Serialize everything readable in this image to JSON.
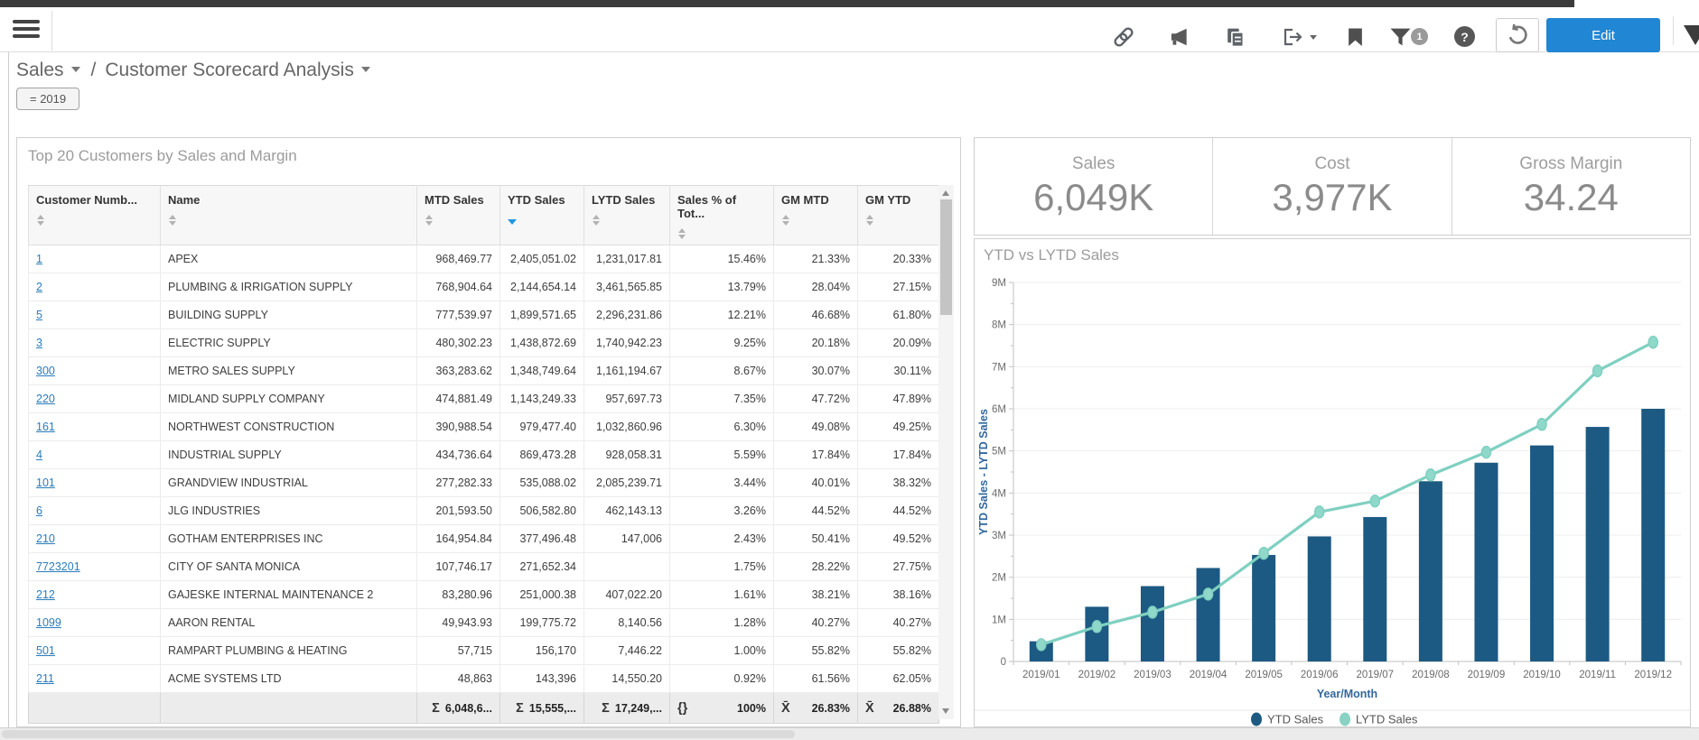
{
  "toolbar": {
    "edit_label": "Edit",
    "filter_badge": "1",
    "help_glyph": "?",
    "icons": [
      "menu-icon",
      "link-icon",
      "megaphone-icon",
      "copy-icon",
      "export-icon",
      "bookmark-icon",
      "filter-icon",
      "help-icon",
      "refresh-icon"
    ]
  },
  "breadcrumb": {
    "level1": "Sales",
    "separator": "/",
    "level2": "Customer Scorecard Analysis"
  },
  "filter_chip": "= 2019",
  "table_panel": {
    "title": "Top 20 Customers by Sales and Margin",
    "columns": [
      "Customer Numb...",
      "Name",
      "MTD Sales",
      "YTD Sales",
      "LYTD Sales",
      "Sales % of Tot...",
      "GM MTD",
      "GM YTD"
    ],
    "sorted_column_index": 3,
    "sort_direction": "desc",
    "rows": [
      [
        "1",
        "APEX",
        "968,469.77",
        "2,405,051.02",
        "1,231,017.81",
        "15.46%",
        "21.33%",
        "20.33%"
      ],
      [
        "2",
        "PLUMBING & IRRIGATION SUPPLY",
        "768,904.64",
        "2,144,654.14",
        "3,461,565.85",
        "13.79%",
        "28.04%",
        "27.15%"
      ],
      [
        "5",
        "BUILDING SUPPLY",
        "777,539.97",
        "1,899,571.65",
        "2,296,231.86",
        "12.21%",
        "46.68%",
        "61.80%"
      ],
      [
        "3",
        "ELECTRIC SUPPLY",
        "480,302.23",
        "1,438,872.69",
        "1,740,942.23",
        "9.25%",
        "20.18%",
        "20.09%"
      ],
      [
        "300",
        "METRO SALES SUPPLY",
        "363,283.62",
        "1,348,749.64",
        "1,161,194.67",
        "8.67%",
        "30.07%",
        "30.11%"
      ],
      [
        "220",
        "MIDLAND SUPPLY COMPANY",
        "474,881.49",
        "1,143,249.33",
        "957,697.73",
        "7.35%",
        "47.72%",
        "47.89%"
      ],
      [
        "161",
        "NORTHWEST CONSTRUCTION",
        "390,988.54",
        "979,477.40",
        "1,032,860.96",
        "6.30%",
        "49.08%",
        "49.25%"
      ],
      [
        "4",
        "INDUSTRIAL SUPPLY",
        "434,736.64",
        "869,473.28",
        "928,058.31",
        "5.59%",
        "17.84%",
        "17.84%"
      ],
      [
        "101",
        "GRANDVIEW INDUSTRIAL",
        "277,282.33",
        "535,088.02",
        "2,085,239.71",
        "3.44%",
        "40.01%",
        "38.32%"
      ],
      [
        "6",
        "JLG INDUSTRIES",
        "201,593.50",
        "506,582.80",
        "462,143.13",
        "3.26%",
        "44.52%",
        "44.52%"
      ],
      [
        "210",
        "GOTHAM ENTERPRISES INC",
        "164,954.84",
        "377,496.48",
        "147,006",
        "2.43%",
        "50.41%",
        "49.52%"
      ],
      [
        "7723201",
        "CITY OF SANTA MONICA",
        "107,746.17",
        "271,652.34",
        "",
        "1.75%",
        "28.22%",
        "27.75%"
      ],
      [
        "212",
        "GAJESKE INTERNAL MAINTENANCE 2",
        "83,280.96",
        "251,000.38",
        "407,022.20",
        "1.61%",
        "38.21%",
        "38.16%"
      ],
      [
        "1099",
        "AARON RENTAL",
        "49,943.93",
        "199,775.72",
        "8,140.56",
        "1.28%",
        "40.27%",
        "40.27%"
      ],
      [
        "501",
        "RAMPART PLUMBING & HEATING",
        "57,715",
        "156,170",
        "7,446.22",
        "1.00%",
        "55.82%",
        "55.82%"
      ],
      [
        "211",
        "ACME SYSTEMS LTD",
        "48,863",
        "143,396",
        "14,550.20",
        "0.92%",
        "61.56%",
        "62.05%"
      ]
    ],
    "totals": [
      {
        "symbol": "",
        "value": ""
      },
      {
        "symbol": "",
        "value": ""
      },
      {
        "symbol": "Σ",
        "value": "6,048,6..."
      },
      {
        "symbol": "Σ",
        "value": "15,555,..."
      },
      {
        "symbol": "Σ",
        "value": "17,249,..."
      },
      {
        "symbol": "{}",
        "value": "100%"
      },
      {
        "symbol": "X̄",
        "value": "26.83%"
      },
      {
        "symbol": "X̄",
        "value": "26.88%"
      }
    ]
  },
  "kpis": [
    {
      "label": "Sales",
      "value": "6,049K"
    },
    {
      "label": "Cost",
      "value": "3,977K"
    },
    {
      "label": "Gross Margin",
      "value": "34.24"
    }
  ],
  "chart_data": {
    "type": "bar",
    "subtype": "bar+line combo",
    "title": "YTD vs LYTD Sales",
    "categories": [
      "2019/01",
      "2019/02",
      "2019/03",
      "2019/04",
      "2019/05",
      "2019/06",
      "2019/07",
      "2019/08",
      "2019/09",
      "2019/10",
      "2019/11",
      "2019/12"
    ],
    "series": [
      {
        "name": "YTD Sales",
        "type": "bar",
        "color": "#1c5a83",
        "values_millions": [
          0.48,
          1.3,
          1.79,
          2.22,
          2.53,
          2.97,
          3.43,
          4.28,
          4.72,
          5.13,
          5.57,
          6.0
        ]
      },
      {
        "name": "LYTD Sales",
        "type": "line",
        "color": "#7fd0c1",
        "values_millions": [
          0.4,
          0.83,
          1.17,
          1.6,
          2.57,
          3.55,
          3.81,
          4.43,
          4.97,
          5.63,
          6.9,
          7.58
        ]
      }
    ],
    "xlabel": "Year/Month",
    "ylabel": "YTD Sales - LYTD Sales",
    "ylim_millions": [
      0,
      9
    ],
    "ytick_step_millions": 1,
    "ytick_format": "{n}M",
    "zero_tick_label": "0",
    "grid": true,
    "legend_position": "bottom"
  }
}
